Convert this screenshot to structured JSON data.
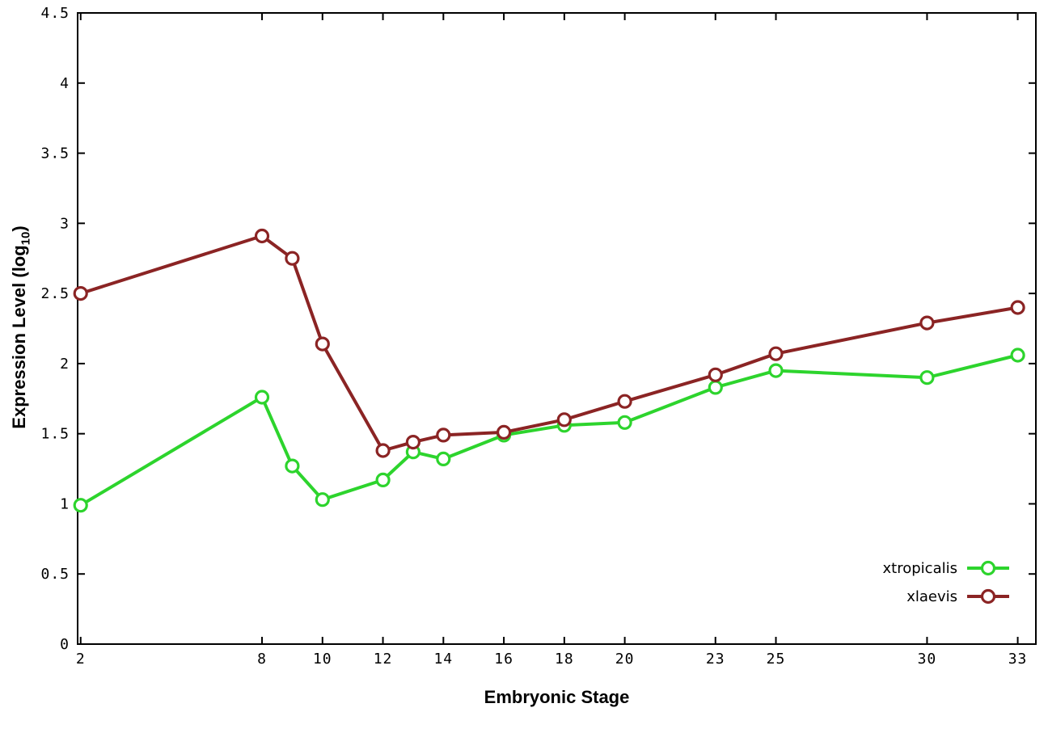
{
  "figure": {
    "background": "#ffffff",
    "border_color": "#000000"
  },
  "chart_data": {
    "type": "line",
    "title": "",
    "xlabel": "Embryonic Stage",
    "ylabel": "Expression Level (log10)",
    "ylabel_parts": {
      "main": "Expression Level (log",
      "sub": "10",
      "close": ")"
    },
    "x": [
      2,
      8,
      9,
      10,
      12,
      13,
      14,
      16,
      18,
      20,
      23,
      25,
      30,
      33
    ],
    "xticks": [
      2,
      8,
      10,
      12,
      14,
      16,
      18,
      20,
      23,
      25,
      30,
      33
    ],
    "xtick_labels": [
      "2",
      "8",
      "10",
      "12",
      "14",
      "16",
      "18",
      "20",
      "23",
      "25",
      "30",
      "33"
    ],
    "yticks": [
      0,
      0.5,
      1,
      1.5,
      2,
      2.5,
      3,
      3.5,
      4,
      4.5
    ],
    "ytick_labels": [
      "0",
      "0.5",
      "1",
      "1.5",
      "2",
      "2.5",
      "3",
      "3.5",
      "4",
      "4.5"
    ],
    "xlim": [
      1.9,
      33.6
    ],
    "ylim": [
      0,
      4.5
    ],
    "grid": false,
    "legend": {
      "position": "inside-bottom-right",
      "entries": [
        "xtropicalis",
        "xlaevis"
      ]
    },
    "series": [
      {
        "name": "xtropicalis",
        "color": "#2dd42d",
        "marker": "open-circle",
        "values": [
          0.99,
          1.76,
          1.27,
          1.03,
          1.17,
          1.37,
          1.32,
          1.49,
          1.56,
          1.58,
          1.83,
          1.95,
          1.9,
          2.06
        ]
      },
      {
        "name": "xlaevis",
        "color": "#8b2424",
        "marker": "open-circle",
        "values": [
          2.5,
          2.91,
          2.75,
          2.14,
          1.38,
          1.44,
          1.49,
          1.51,
          1.6,
          1.73,
          1.92,
          2.07,
          2.29,
          2.4
        ]
      }
    ]
  }
}
